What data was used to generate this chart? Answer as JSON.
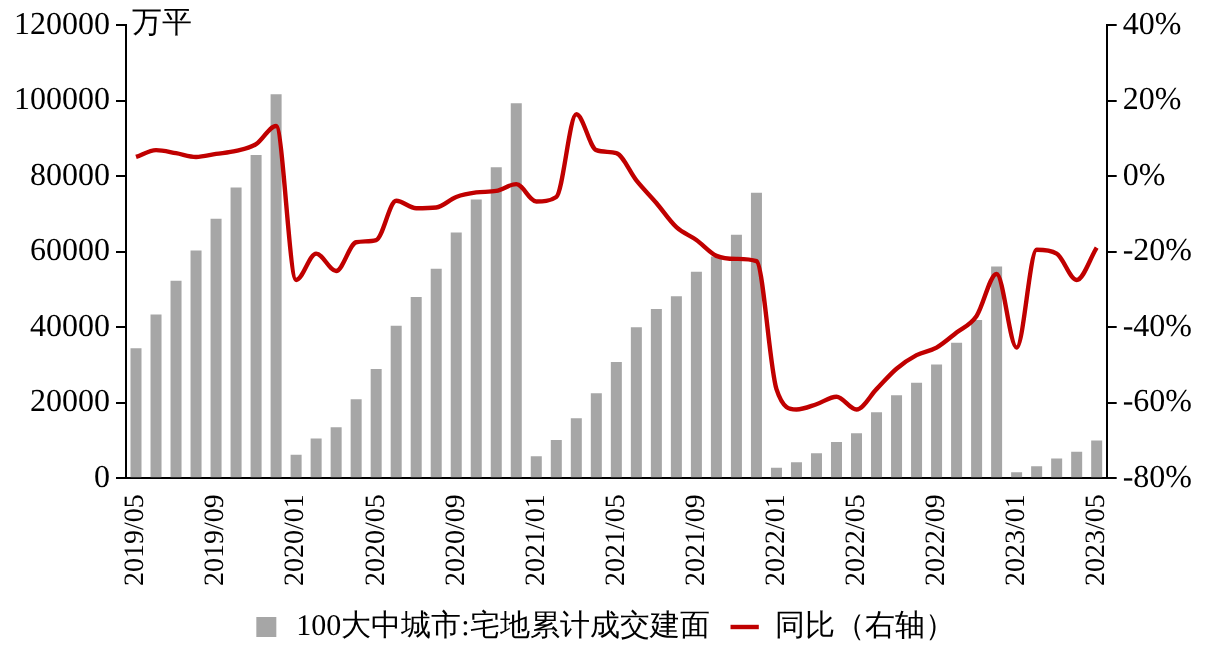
{
  "chart_data": {
    "type": "bar",
    "ylabel": "万平",
    "categories": [
      "2019/05",
      null,
      null,
      null,
      "2019/09",
      null,
      null,
      null,
      "2020/01",
      null,
      null,
      null,
      "2020/05",
      null,
      null,
      null,
      "2020/09",
      null,
      null,
      null,
      "2021/01",
      null,
      null,
      null,
      "2021/05",
      null,
      null,
      null,
      "2021/09",
      null,
      null,
      null,
      "2022/01",
      null,
      null,
      null,
      "2022/05",
      null,
      null,
      null,
      "2022/09",
      null,
      null,
      null,
      "2023/01",
      null,
      null,
      null,
      "2023/05"
    ],
    "series": [
      {
        "name": "100大中城市:宅地累计成交建面",
        "color": "#a6a6a6",
        "values": [
          34400,
          43400,
          52300,
          60300,
          68700,
          77000,
          85600,
          101700,
          6200,
          10500,
          13500,
          20900,
          28900,
          40400,
          48000,
          55500,
          65100,
          73800,
          82400,
          99300,
          5800,
          10100,
          15900,
          22500,
          30800,
          40000,
          44800,
          48200,
          54700,
          58700,
          64500,
          75600,
          2800,
          4200,
          6600,
          9600,
          11900,
          17500,
          22000,
          25300,
          30100,
          35900,
          41900,
          56100,
          1600,
          3200,
          5200,
          7000,
          10000
        ]
      },
      {
        "name": "同比（右轴）",
        "type": "line",
        "axis": "y2",
        "color": "#c00000",
        "values": [
          5.1,
          6.9,
          6.1,
          5.1,
          5.9,
          6.7,
          8.5,
          13.3,
          -27.5,
          -20.5,
          -25.1,
          -17.5,
          -16.9,
          -6.5,
          -8.5,
          -8.3,
          -5.5,
          -4.3,
          -3.9,
          -2.1,
          -6.7,
          -5.5,
          16.4,
          6.9,
          6.1,
          -1.1,
          -7.1,
          -13.5,
          -16.9,
          -21.1,
          -21.9,
          -22.5,
          -56.4,
          -61.8,
          -60.4,
          -58.4,
          -61.8,
          -56.4,
          -51,
          -47.4,
          -45.4,
          -41.4,
          -37,
          -25.9,
          -45.4,
          -19.5,
          -20.5,
          -27.5,
          -18.9
        ]
      }
    ],
    "ylim": [
      0,
      120000
    ],
    "yticks": [
      0,
      20000,
      40000,
      60000,
      80000,
      100000,
      120000
    ],
    "y2lim": [
      -80,
      40
    ],
    "y2ticks": [
      {
        "value": -80,
        "label": "-80%"
      },
      {
        "value": -60,
        "label": "-60%"
      },
      {
        "value": -40,
        "label": "-40%"
      },
      {
        "value": -20,
        "label": "-20%"
      },
      {
        "value": 0,
        "label": "0%"
      },
      {
        "value": 20,
        "label": "20%"
      },
      {
        "value": 40,
        "label": "40%"
      }
    ],
    "grid": false,
    "legend": "bottom",
    "marker": "none",
    "line_style": "solid"
  }
}
